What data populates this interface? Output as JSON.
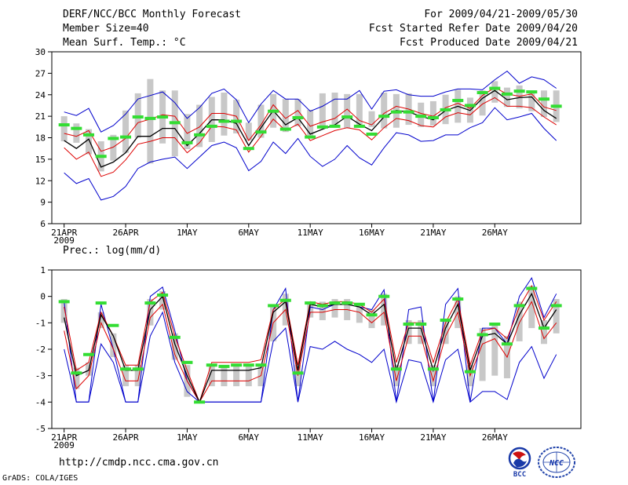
{
  "header": {
    "title": "DERF/NCC/BCC Monthly Forecast",
    "member_size": "Member Size=40",
    "variable": "Mean Surf. Temp.: °C",
    "forecast_period": "For 2009/04/21-2009/05/30",
    "start_refer_date": "Fcst Started Refer Date 2009/04/20",
    "produced_date": "Fcst Produced Date 2009/04/21"
  },
  "footer": {
    "url": "http://cmdp.ncc.cma.gov.cn",
    "credit": "GrADS: COLA/IGES",
    "logo_bcc_label": "BCC",
    "logo_ncc_label": "NCC"
  },
  "colors": {
    "ensemble_max_min": "#0000cc",
    "ensemble_spread": "#dd0000",
    "ensemble_mean": "#000000",
    "member_range_bar": "#c8c8c8",
    "climatology_marker": "#33dd33"
  },
  "chart_data": [
    {
      "type": "line",
      "title": "Mean Surf. Temp.: °C",
      "x_start_date": "2009-04-21",
      "x_ticks": [
        {
          "day": 0,
          "label": "21APR",
          "sublabel": "2009"
        },
        {
          "day": 5,
          "label": "26APR"
        },
        {
          "day": 10,
          "label": "1MAY"
        },
        {
          "day": 15,
          "label": "6MAY"
        },
        {
          "day": 20,
          "label": "11MAY"
        },
        {
          "day": 25,
          "label": "16MAY"
        },
        {
          "day": 30,
          "label": "21MAY"
        },
        {
          "day": 35,
          "label": "26MAY"
        }
      ],
      "xlim": [
        -1,
        42
      ],
      "ylim": [
        6,
        30
      ],
      "y_ticks": [
        "6",
        "9",
        "12",
        "15",
        "18",
        "21",
        "24",
        "27",
        "30"
      ],
      "series": [
        {
          "name": "max",
          "values": [
            21.6,
            21.1,
            22.1,
            18.8,
            19.7,
            21.3,
            23.4,
            23.9,
            24.4,
            22.9,
            20.7,
            22.2,
            24.2,
            24.8,
            23.3,
            20.1,
            22.7,
            24.6,
            23.4,
            23.4,
            21.7,
            22.4,
            23.4,
            23.4,
            24.6,
            22.0,
            24.5,
            24.7,
            24.0,
            23.8,
            23.8,
            24.4,
            24.8,
            24.8,
            24.7,
            26.1,
            27.3,
            25.6,
            26.5,
            26.1,
            24.9
          ]
        },
        {
          "name": "spread_upper",
          "values": [
            18.6,
            18.2,
            19.0,
            16.1,
            16.7,
            17.9,
            20.1,
            20.6,
            21.2,
            21.0,
            18.6,
            19.5,
            21.4,
            21.4,
            21.0,
            17.6,
            19.8,
            22.6,
            20.7,
            21.8,
            19.6,
            20.2,
            20.7,
            22.0,
            20.4,
            19.8,
            21.4,
            22.4,
            22.0,
            21.4,
            21.0,
            22.2,
            22.8,
            22.1,
            23.9,
            25.0,
            24.1,
            23.8,
            24.1,
            22.3,
            21.8
          ]
        },
        {
          "name": "mean",
          "values": [
            17.6,
            16.5,
            17.8,
            13.9,
            14.6,
            15.9,
            18.2,
            18.2,
            19.3,
            19.3,
            16.9,
            18.6,
            20.5,
            20.5,
            20.0,
            16.9,
            19.4,
            21.8,
            19.8,
            20.8,
            18.5,
            19.2,
            19.8,
            21.0,
            19.9,
            19.0,
            20.9,
            21.8,
            21.6,
            21.0,
            20.5,
            21.8,
            22.4,
            21.8,
            23.5,
            24.6,
            23.3,
            23.6,
            23.7,
            21.8,
            20.7
          ]
        },
        {
          "name": "spread_lower",
          "values": [
            16.6,
            15.0,
            16.0,
            12.6,
            13.2,
            14.9,
            17.1,
            17.5,
            18.0,
            18.0,
            15.9,
            17.3,
            19.6,
            19.5,
            19.1,
            16.0,
            18.2,
            20.6,
            19.0,
            19.9,
            17.6,
            18.3,
            19.0,
            19.4,
            19.1,
            17.7,
            19.4,
            20.7,
            20.4,
            19.7,
            19.5,
            20.9,
            21.5,
            21.2,
            22.7,
            23.6,
            22.4,
            22.4,
            22.2,
            20.9,
            19.8
          ]
        },
        {
          "name": "min",
          "values": [
            13.1,
            11.6,
            12.3,
            9.3,
            9.8,
            11.2,
            13.7,
            14.6,
            15.0,
            15.3,
            13.7,
            15.3,
            16.9,
            17.4,
            16.6,
            13.4,
            14.7,
            17.4,
            15.8,
            17.9,
            15.4,
            14.0,
            15.0,
            16.9,
            15.2,
            14.2,
            16.6,
            18.7,
            18.4,
            17.5,
            17.6,
            18.4,
            18.4,
            19.4,
            20.1,
            22.2,
            20.5,
            20.9,
            21.4,
            19.3,
            17.6
          ]
        },
        {
          "name": "range_bar_top",
          "values": [
            21.0,
            20.0,
            19.2,
            17.5,
            18.4,
            21.8,
            24.2,
            26.2,
            24.6,
            24.6,
            21.3,
            22.6,
            23.7,
            24.3,
            23.3,
            20.1,
            22.6,
            24.1,
            23.4,
            23.4,
            21.9,
            24.2,
            24.3,
            24.1,
            24.1,
            21.7,
            24.3,
            24.1,
            24.2,
            22.9,
            23.1,
            24.0,
            24.7,
            23.6,
            24.6,
            25.9,
            25.0,
            25.3,
            24.6,
            24.6,
            24.6
          ]
        },
        {
          "name": "range_bar_bottom",
          "values": [
            17.5,
            17.3,
            15.7,
            13.3,
            14.8,
            15.9,
            18.0,
            14.4,
            17.2,
            15.4,
            16.4,
            16.7,
            17.4,
            18.3,
            18.6,
            17.6,
            18.0,
            19.4,
            18.8,
            19.6,
            18.3,
            19.7,
            19.7,
            19.3,
            19.6,
            19.5,
            19.3,
            19.4,
            19.8,
            19.5,
            19.7,
            19.9,
            20.1,
            20.1,
            21.1,
            22.9,
            22.3,
            22.1,
            21.7,
            20.9,
            20.2
          ]
        },
        {
          "name": "climatology",
          "values": [
            19.8,
            19.3,
            18.4,
            15.4,
            17.9,
            18.1,
            20.9,
            20.7,
            20.9,
            20.1,
            17.3,
            18.4,
            19.6,
            20.3,
            20.3,
            16.5,
            18.8,
            21.7,
            19.2,
            20.8,
            18.1,
            19.5,
            19.6,
            20.9,
            19.6,
            18.5,
            21.0,
            21.6,
            21.6,
            21.0,
            20.8,
            21.9,
            23.2,
            22.5,
            24.3,
            24.9,
            24.1,
            24.5,
            24.4,
            23.4,
            22.4
          ]
        }
      ]
    },
    {
      "type": "line",
      "title": "Prec.: log(mm/d)",
      "x_start_date": "2009-04-21",
      "x_ticks": [
        {
          "day": 0,
          "label": "21APR",
          "sublabel": "2009"
        },
        {
          "day": 5,
          "label": "26APR"
        },
        {
          "day": 10,
          "label": "1MAY"
        },
        {
          "day": 15,
          "label": "6MAY"
        },
        {
          "day": 20,
          "label": "11MAY"
        },
        {
          "day": 25,
          "label": "16MAY"
        },
        {
          "day": 30,
          "label": "21MAY"
        },
        {
          "day": 35,
          "label": "26MAY"
        }
      ],
      "xlim": [
        -1,
        42
      ],
      "ylim": [
        -5,
        1
      ],
      "y_ticks": [
        "-5",
        "-4",
        "-3",
        "-2",
        "-1",
        "0",
        "1"
      ],
      "series": [
        {
          "name": "max",
          "values": [
            -2.0,
            -4.0,
            -4.0,
            -0.3,
            -2.0,
            -4.0,
            -4.0,
            0.0,
            0.35,
            -1.3,
            -3.2,
            -4.0,
            -4.0,
            -4.0,
            -4.0,
            -4.0,
            -4.0,
            -0.5,
            0.3,
            -4.0,
            -0.4,
            -0.5,
            -0.3,
            -0.3,
            -0.4,
            -0.5,
            0.25,
            -4.0,
            -0.5,
            -0.4,
            -4.0,
            -0.3,
            0.3,
            -4.0,
            -1.2,
            -1.2,
            -1.8,
            0.0,
            0.7,
            -0.8,
            0.1
          ]
        },
        {
          "name": "spread_upper",
          "values": [
            -0.4,
            -2.8,
            -2.5,
            -0.6,
            -1.5,
            -2.6,
            -2.6,
            -0.2,
            0.15,
            -1.5,
            -2.8,
            -4.0,
            -2.5,
            -2.5,
            -2.5,
            -2.5,
            -2.4,
            -0.5,
            -0.1,
            -2.6,
            -0.2,
            -0.3,
            -0.2,
            -0.2,
            -0.3,
            -0.6,
            -0.1,
            -2.5,
            -1.0,
            -1.0,
            -2.5,
            -1.0,
            -0.1,
            -2.6,
            -1.3,
            -1.2,
            -1.6,
            -0.4,
            0.4,
            -0.9,
            -0.2
          ]
        },
        {
          "name": "mean",
          "values": [
            -0.8,
            -3.0,
            -2.8,
            -0.7,
            -1.5,
            -2.8,
            -2.8,
            -0.5,
            0.0,
            -1.8,
            -3.0,
            -4.0,
            -2.8,
            -2.8,
            -2.8,
            -2.8,
            -2.7,
            -0.6,
            -0.2,
            -2.8,
            -0.3,
            -0.4,
            -0.3,
            -0.3,
            -0.4,
            -0.7,
            -0.3,
            -2.8,
            -1.2,
            -1.2,
            -2.8,
            -1.2,
            -0.3,
            -2.8,
            -1.5,
            -1.4,
            -1.8,
            -0.7,
            0.1,
            -1.2,
            -0.5
          ]
        },
        {
          "name": "spread_lower",
          "values": [
            -1.3,
            -3.5,
            -3.0,
            -1.0,
            -2.0,
            -3.2,
            -3.2,
            -0.8,
            -0.3,
            -2.2,
            -3.2,
            -4.0,
            -3.2,
            -3.2,
            -3.2,
            -3.2,
            -3.0,
            -1.0,
            -0.5,
            -3.0,
            -0.6,
            -0.6,
            -0.5,
            -0.5,
            -0.6,
            -1.0,
            -0.6,
            -3.2,
            -1.5,
            -1.5,
            -3.2,
            -1.5,
            -0.6,
            -3.0,
            -1.8,
            -1.6,
            -2.3,
            -1.0,
            -0.2,
            -1.6,
            -1.0
          ]
        },
        {
          "name": "min",
          "values": [
            -0.2,
            -4.0,
            -4.0,
            -1.8,
            -2.5,
            -4.0,
            -4.0,
            -1.5,
            -0.6,
            -2.5,
            -3.6,
            -4.0,
            -4.0,
            -4.0,
            -4.0,
            -4.0,
            -4.0,
            -1.7,
            -1.2,
            -4.0,
            -1.9,
            -2.0,
            -1.7,
            -2.0,
            -2.2,
            -2.5,
            -2.0,
            -4.0,
            -2.4,
            -2.5,
            -4.0,
            -2.4,
            -2.0,
            -4.0,
            -3.6,
            -3.6,
            -3.9,
            -2.5,
            -1.9,
            -3.1,
            -2.2
          ]
        },
        {
          "name": "range_bar_top",
          "values": [
            -0.1,
            -2.7,
            -2.5,
            -0.6,
            -1.4,
            -2.6,
            -2.6,
            -0.1,
            0.2,
            -1.4,
            -2.6,
            -4.0,
            -2.6,
            -2.6,
            -2.6,
            -2.6,
            -2.6,
            -0.4,
            0.1,
            -2.6,
            -0.2,
            -0.2,
            -0.1,
            -0.1,
            -0.3,
            -0.5,
            0.1,
            -2.6,
            -0.9,
            -0.9,
            -2.6,
            -0.9,
            0.0,
            -2.6,
            -1.2,
            -1.0,
            -1.5,
            -0.2,
            0.4,
            -0.9,
            -0.1
          ]
        },
        {
          "name": "range_bar_bottom",
          "values": [
            -1.0,
            -3.5,
            -3.0,
            -1.2,
            -2.3,
            -3.4,
            -3.4,
            -1.1,
            -0.5,
            -2.4,
            -3.8,
            -4.0,
            -3.4,
            -3.4,
            -3.4,
            -3.4,
            -3.4,
            -1.7,
            -1.1,
            -3.4,
            -0.8,
            -0.9,
            -0.8,
            -0.9,
            -1.0,
            -1.2,
            -1.1,
            -3.4,
            -1.8,
            -1.8,
            -3.4,
            -1.8,
            -1.2,
            -3.4,
            -3.2,
            -3.0,
            -3.1,
            -1.7,
            -1.2,
            -1.8,
            -1.4
          ]
        },
        {
          "name": "climatology",
          "values": [
            -0.2,
            -2.9,
            -2.2,
            -0.25,
            -1.1,
            -2.75,
            -2.75,
            -0.25,
            0.05,
            -1.55,
            -2.5,
            -4.0,
            -2.6,
            -2.65,
            -2.6,
            -2.6,
            -2.6,
            -0.35,
            -0.15,
            -2.9,
            -0.25,
            -0.35,
            -0.25,
            -0.25,
            -0.3,
            -0.7,
            0.0,
            -2.75,
            -1.05,
            -1.05,
            -2.75,
            -0.9,
            -0.1,
            -2.85,
            -1.45,
            -1.05,
            -1.8,
            -0.35,
            0.3,
            -1.2,
            -0.35
          ]
        }
      ]
    }
  ]
}
